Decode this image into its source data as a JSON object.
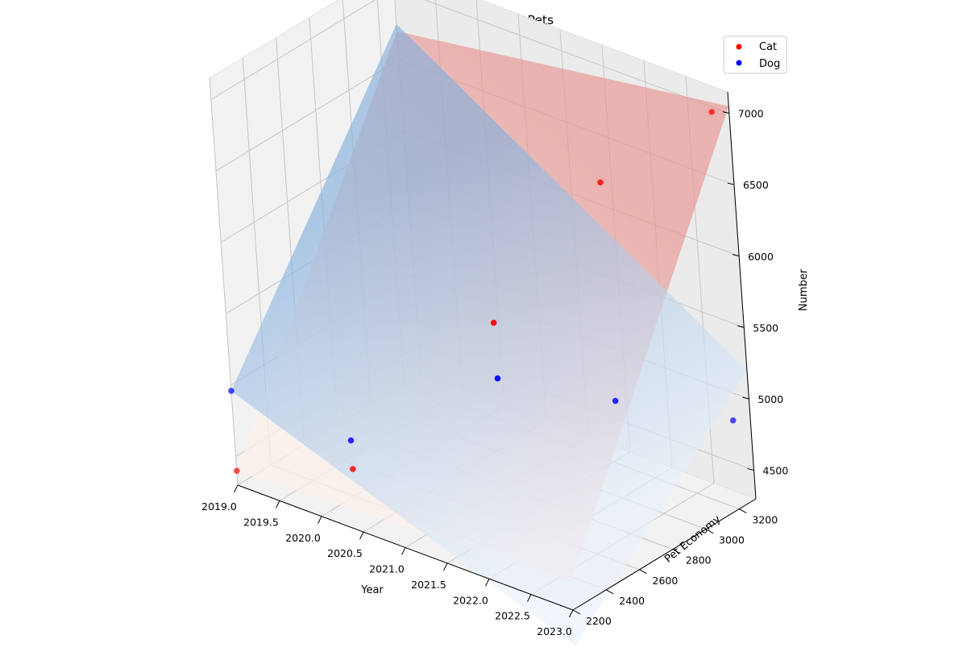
{
  "chart_data": {
    "type": "scatter",
    "title": "Pet Economy-Year-Pets",
    "xlabel": "Year",
    "ylabel": "Pet Economy",
    "zlabel": "Number",
    "xlim": [
      2019,
      2023
    ],
    "ylim": [
      2200,
      3300
    ],
    "zlim": [
      4300,
      7150
    ],
    "x_ticks": [
      "2019.0",
      "2019.5",
      "2020.0",
      "2020.5",
      "2021.0",
      "2021.5",
      "2022.0",
      "2022.5",
      "2023.0"
    ],
    "y_ticks": [
      "2200",
      "2400",
      "2600",
      "2800",
      "3000",
      "3200"
    ],
    "z_ticks": [
      "4500",
      "5000",
      "5500",
      "6000",
      "6500",
      "7000"
    ],
    "grid": true,
    "legend": "top-right",
    "series": [
      {
        "name": "Cat",
        "color": "#ff0000",
        "points": [
          {
            "x": 2019,
            "y": 2200,
            "z": 4400
          },
          {
            "x": 2020,
            "y": 2400,
            "z": 4490
          },
          {
            "x": 2021,
            "y": 2800,
            "z": 5450
          },
          {
            "x": 2022,
            "y": 3000,
            "z": 6510
          },
          {
            "x": 2023,
            "y": 3200,
            "z": 7080
          }
        ]
      },
      {
        "name": "Dog",
        "color": "#0000ff",
        "points": [
          {
            "x": 2019,
            "y": 2200,
            "z": 4960
          },
          {
            "x": 2020,
            "y": 2400,
            "z": 4690
          },
          {
            "x": 2021,
            "y": 2800,
            "z": 5060
          },
          {
            "x": 2022,
            "y": 3000,
            "z": 4980
          },
          {
            "x": 2023,
            "y": 3200,
            "z": 4920
          }
        ]
      }
    ],
    "surfaces": [
      {
        "series": "Cat",
        "color": "#f4a6a0",
        "corners": [
          [
            2019,
            2200,
            4400
          ],
          [
            2023,
            2200,
            4500
          ],
          [
            2023,
            3300,
            7050
          ],
          [
            2019,
            3300,
            6700
          ]
        ]
      },
      {
        "series": "Dog",
        "color": "#9cc4e6",
        "corners": [
          [
            2019,
            2200,
            4960
          ],
          [
            2023,
            2200,
            4050
          ],
          [
            2023,
            3300,
            5200
          ],
          [
            2019,
            3300,
            6750
          ]
        ]
      }
    ]
  }
}
